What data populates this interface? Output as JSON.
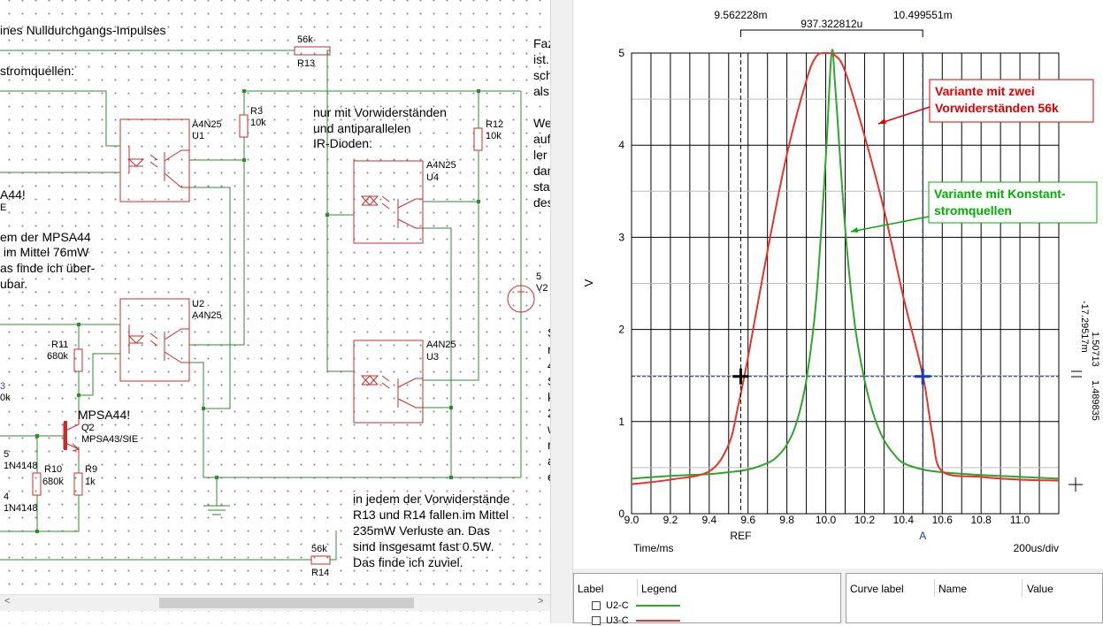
{
  "schematic": {
    "notes": {
      "title": "ines Nulldurchgangs-Impulses",
      "stromquellen": "stromquellen:",
      "mpsa44_left": "A44!",
      "sie_fragment": "E",
      "loss_left_1": "em der MPSA44",
      "loss_left_2": " im Mittel 76mW",
      "loss_left_3": "as finde ich über-",
      "loss_left_4": "ubar.",
      "vorwid_1": "nur mit Vorwiderständen",
      "vorwid_2": "und antiparallelen",
      "vorwid_3": "IR-Dioden:",
      "fazit_1": "Faz",
      "fazit_2": "ist.I",
      "fazit_3": "sch",
      "fazit_4": "als",
      "we_1": "We",
      "we_2": "auf",
      "we_3": "ler",
      "we_4": "dan",
      "we_5": "stat",
      "we_6": "des",
      "s_col": [
        "S",
        "n",
        "4",
        "S",
        "k",
        "2",
        "w",
        "n",
        "a",
        "e"
      ],
      "bottom_1": "in jedem der Vorwiderstände",
      "bottom_2": "R13 und R14 fallen im Mittel",
      "bottom_3": "235mW Verluste an. Das",
      "bottom_4": "sind insgesamt fast 0.5W.",
      "bottom_5": "Das finde ich zuviel."
    },
    "components": {
      "r13_val": "56k",
      "r13_name": "R13",
      "r3_name": "R3",
      "r3_val": "10k",
      "u1_type": "A4N25",
      "u1_name": "U1",
      "r12_name": "R12",
      "r12_val": "10k",
      "u4_type": "A4N25",
      "u4_name": "U4",
      "u2_name": "U2",
      "u2_type": "A4N25",
      "r11_name": "R11",
      "r11_val": "680k",
      "u3_type": "A4N25",
      "u3_name": "U3",
      "q2_label": "MPSA44!",
      "q2_name": "Q2",
      "q2_type": "MPSA43/SIE",
      "r10_name": "R10",
      "r10_val": "680k",
      "r9_name": "R9",
      "r9_val": "1k",
      "d_5": "5",
      "d_1n4148_a": "1N4148",
      "d_4": "4",
      "d_1n4148_b": "1N4148",
      "left_3": "3",
      "left_0k": "0k",
      "v2_val": "5",
      "v2_name": "V2",
      "r14_val": "56k",
      "r14_name": "R14"
    }
  },
  "plot": {
    "cursor_ref_value": "9.562228m",
    "cursor_delta": "937.322812u",
    "cursor_a_value": "10.499551m",
    "y_unit": "V",
    "x_axis_label": "Time/ms",
    "x_div_label": "200us/div",
    "ref_label": "REF",
    "a_label": "A",
    "right_readout_1": "-17.29517m",
    "right_readout_2": "1.50713",
    "right_readout_3": "1.489835",
    "annotation_red_1": "Variante mit zwei",
    "annotation_red_2": "Vorwiderständen 56k",
    "annotation_green_1": "Variante mit Konstant-",
    "annotation_green_2": "stromquellen",
    "colors": {
      "red": "#e8322a",
      "green": "#2ea62e",
      "ann_red": "#e00000",
      "ann_green": "#00b000"
    }
  },
  "chart_data": {
    "type": "line",
    "xlabel": "Time/ms",
    "ylabel": "V",
    "xlim": [
      9.0,
      11.2
    ],
    "ylim": [
      0,
      5
    ],
    "x_ticks": [
      "9.0",
      "9.2",
      "9.4",
      "9.6",
      "9.8",
      "10.0",
      "10.2",
      "10.4",
      "10.6",
      "10.8",
      "11.0"
    ],
    "y_ticks": [
      "0",
      "1",
      "2",
      "3",
      "4",
      "5"
    ],
    "grid": true,
    "cursors": [
      {
        "name": "REF",
        "x": 9.562228
      },
      {
        "name": "A",
        "x": 10.499551
      }
    ],
    "hline": 1.49,
    "series": [
      {
        "name": "U2-C",
        "color": "#2ea62e",
        "x": [
          9.0,
          9.2,
          9.4,
          9.5,
          9.6,
          9.7,
          9.75,
          9.8,
          9.85,
          9.9,
          9.95,
          10.0,
          10.03,
          10.05,
          10.1,
          10.15,
          10.2,
          10.25,
          10.3,
          10.35,
          10.4,
          10.5,
          10.6,
          10.8,
          11.0,
          11.2
        ],
        "y": [
          0.38,
          0.41,
          0.43,
          0.45,
          0.48,
          0.55,
          0.62,
          0.75,
          0.99,
          1.45,
          2.3,
          3.85,
          5.0,
          4.6,
          3.1,
          2.05,
          1.45,
          1.05,
          0.8,
          0.65,
          0.55,
          0.48,
          0.45,
          0.42,
          0.4,
          0.38
        ]
      },
      {
        "name": "U3-C",
        "color": "#e8322a",
        "x": [
          9.0,
          9.2,
          9.4,
          9.5,
          9.55,
          9.6,
          9.7,
          9.8,
          9.9,
          9.95,
          10.0,
          10.05,
          10.1,
          10.2,
          10.3,
          10.4,
          10.5,
          10.55,
          10.6,
          10.8,
          11.0,
          11.2
        ],
        "y": [
          0.32,
          0.37,
          0.46,
          0.75,
          1.18,
          1.7,
          2.85,
          3.9,
          4.7,
          4.96,
          5.0,
          4.97,
          4.8,
          4.1,
          3.3,
          2.35,
          1.5,
          0.85,
          0.46,
          0.4,
          0.37,
          0.36
        ]
      }
    ]
  },
  "legend": {
    "col_label": "Label",
    "col_legend": "Legend",
    "col_curve": "Curve label",
    "col_name": "Name",
    "col_value": "Value",
    "items": [
      {
        "label": "U2-C",
        "color": "#2ea62e"
      },
      {
        "label": "U3-C",
        "color": "#e8322a"
      }
    ]
  },
  "scroll": {
    "left_arrow": "<",
    "right_arrow": ">"
  }
}
